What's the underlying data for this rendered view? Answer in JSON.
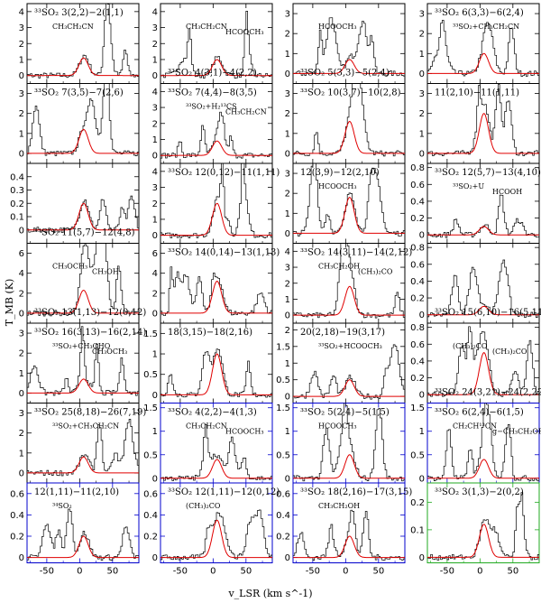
{
  "figure": {
    "ylabel": "T_MB (K)",
    "xlabel": "v_LSR (km s^-1)",
    "xlim": [
      -80,
      90
    ],
    "xticks": [
      -50,
      0,
      50
    ]
  },
  "chart_data": [
    {
      "type": "line",
      "axis_color": "#000000",
      "ylim": [
        -0.5,
        4.5
      ],
      "yticks": [
        0,
        1,
        2,
        3,
        4
      ],
      "peak": 1.1,
      "label": "³³SO₂ 3(2,2)−2(1,1)",
      "label_pos": "top",
      "annotations": [
        "CH₃CH₂CN"
      ]
    },
    {
      "type": "line",
      "axis_color": "#000000",
      "ylim": [
        -0.5,
        4.5
      ],
      "yticks": [
        0,
        1,
        2,
        3,
        4
      ],
      "peak": 1.0,
      "label": "³³SO₂ 4(3,1)−4(2,2)",
      "label_pos": "bottom",
      "annotations": [
        "CH₃CH₂CN",
        "HCOOCH₃"
      ]
    },
    {
      "type": "line",
      "axis_color": "#000000",
      "ylim": [
        -0.5,
        3.5
      ],
      "yticks": [
        0,
        1,
        2,
        3
      ],
      "peak": 0.7,
      "label": "³³SO₂ 5(3,3)−5(2,4)",
      "label_pos": "bottom",
      "annotations": [
        "HCOOCH₃"
      ]
    },
    {
      "type": "line",
      "axis_color": "#000000",
      "ylim": [
        -0.5,
        3.5
      ],
      "yticks": [
        0,
        1,
        2,
        3
      ],
      "peak": 1.0,
      "label": "³³SO₂ 6(3,3)−6(2,4)",
      "label_pos": "top",
      "annotations": [
        "³³SO₂+CH₃CH₂CN"
      ]
    },
    {
      "type": "line",
      "axis_color": "#000000",
      "ylim": [
        -0.5,
        3.5
      ],
      "yticks": [
        0,
        1,
        2,
        3
      ],
      "peak": 1.2,
      "label": "³³SO₂ 7(3,5)−7(2,6)",
      "label_pos": "top",
      "annotations": []
    },
    {
      "type": "line",
      "axis_color": "#000000",
      "ylim": [
        -0.5,
        4.5
      ],
      "yticks": [
        0,
        1,
        2,
        3,
        4
      ],
      "peak": 0.9,
      "label": "³³SO₂ 7(4,4)−8(3,5)",
      "label_pos": "top",
      "annotations": [
        "³³SO₂+H₂¹³CS",
        "CH₃CH₂CN"
      ]
    },
    {
      "type": "line",
      "axis_color": "#000000",
      "ylim": [
        -0.5,
        3.5
      ],
      "yticks": [
        0,
        1,
        2,
        3
      ],
      "peak": 1.6,
      "label": "³³SO₂ 10(3,7)−10(2,8)",
      "label_pos": "top",
      "annotations": []
    },
    {
      "type": "line",
      "axis_color": "#000000",
      "ylim": [
        -0.5,
        3.5
      ],
      "yticks": [
        0,
        1,
        2,
        3
      ],
      "peak": 2.0,
      "label": "11(2,10)−11(1,11)",
      "label_pos": "top",
      "annotations": []
    },
    {
      "type": "line",
      "axis_color": "#000000",
      "ylim": [
        -0.1,
        0.5
      ],
      "yticks": [
        0,
        0.1,
        0.2,
        0.3,
        0.4
      ],
      "peak": 0.2,
      "label": "³³SO₂ 11(5,7)−12(4,8)",
      "label_pos": "bottom",
      "annotations": []
    },
    {
      "type": "line",
      "axis_color": "#000000",
      "ylim": [
        -0.5,
        4.5
      ],
      "yticks": [
        0,
        1,
        2,
        3,
        4
      ],
      "peak": 2.0,
      "label": "³³SO₂ 12(0,12)−11(1,11)",
      "label_pos": "top",
      "annotations": []
    },
    {
      "type": "line",
      "axis_color": "#000000",
      "ylim": [
        -0.5,
        3.5
      ],
      "yticks": [
        0,
        1,
        2,
        3
      ],
      "peak": 1.8,
      "label": "12(3,9)−12(2,10)",
      "label_pos": "top",
      "annotations": [
        "HCOOCH₃"
      ]
    },
    {
      "type": "line",
      "axis_color": "#000000",
      "ylim": [
        -0.1,
        0.85
      ],
      "yticks": [
        0,
        0.2,
        0.4,
        0.6,
        0.8
      ],
      "peak": 0.1,
      "label": "³³SO₂ 12(5,7)−13(4,10)",
      "label_pos": "top",
      "annotations": [
        "³³SO₂+U",
        "HCOOH"
      ]
    },
    {
      "type": "line",
      "axis_color": "#000000",
      "ylim": [
        -1,
        7
      ],
      "yticks": [
        0,
        2,
        4,
        6
      ],
      "peak": 2.3,
      "label": "³³SO₂ 13(1,13)−12(0,12)",
      "label_pos": "bottom",
      "annotations": [
        "CH₃OCH₃",
        "CH₃OH"
      ]
    },
    {
      "type": "line",
      "axis_color": "#000000",
      "ylim": [
        -1,
        7
      ],
      "yticks": [
        0,
        2,
        4,
        6
      ],
      "peak": 3.2,
      "label": "³³SO₂ 14(0,14)−13(1,13)",
      "label_pos": "top",
      "annotations": []
    },
    {
      "type": "line",
      "axis_color": "#000000",
      "ylim": [
        -0.5,
        4.5
      ],
      "yticks": [
        0,
        1,
        2,
        3,
        4
      ],
      "peak": 1.8,
      "label": "³³SO₂ 14(3,11)−14(2,12)",
      "label_pos": "top",
      "annotations": [
        "CH₃CH₂OH",
        "(CH₃)₂CO"
      ]
    },
    {
      "type": "line",
      "axis_color": "#000000",
      "ylim": [
        -0.1,
        0.85
      ],
      "yticks": [
        0,
        0.2,
        0.4,
        0.6,
        0.8
      ],
      "peak": 0.1,
      "label": "³³SO₂ 15(6,10)−16(5,11)",
      "label_pos": "bottom",
      "annotations": []
    },
    {
      "type": "line",
      "axis_color": "#000000",
      "ylim": [
        -0.5,
        3.5
      ],
      "yticks": [
        0,
        1,
        2,
        3
      ],
      "peak": 0.7,
      "label": "³³SO₂ 16(3,13)−16(2,14)",
      "label_pos": "top",
      "annotations": [
        "³³SO₂+CH₃CHO",
        "CH₃OCH₃"
      ]
    },
    {
      "type": "line",
      "axis_color": "#000000",
      "ylim": [
        -0.2,
        1.75
      ],
      "yticks": [
        0,
        0.5,
        1,
        1.5
      ],
      "peak": 1.0,
      "label": "18(3,15)−18(2,16)",
      "label_pos": "top",
      "annotations": []
    },
    {
      "type": "line",
      "axis_color": "#000000",
      "ylim": [
        -0.2,
        2.2
      ],
      "yticks": [
        0,
        0.5,
        1,
        1.5,
        2
      ],
      "peak": 0.5,
      "label": "20(2,18)−19(3,17)",
      "label_pos": "top",
      "annotations": [
        "³³SO₂+HCOOCH₃"
      ]
    },
    {
      "type": "line",
      "axis_color": "#000000",
      "ylim": [
        -0.1,
        0.85
      ],
      "yticks": [
        0,
        0.2,
        0.4,
        0.6,
        0.8
      ],
      "peak": 0.5,
      "label": "³³SO₂ 24(3,21)−24(2,22)",
      "label_pos": "bottom",
      "annotations": [
        "(CH₃)₂CO",
        "(CH₃)₂CO"
      ]
    },
    {
      "type": "line",
      "axis_color": "#000000",
      "ylim": [
        -0.5,
        3.5
      ],
      "yticks": [
        0,
        1,
        2,
        3
      ],
      "peak": 0.8,
      "label": "³³SO₂ 25(8,18)−26(7,19)",
      "label_pos": "top",
      "annotations": [
        "³³SO₂+CH₃CH₂CN"
      ]
    },
    {
      "type": "line",
      "axis_color": "#0000cc",
      "ylim": [
        -0.1,
        1.6
      ],
      "yticks": [
        0,
        0.5,
        1,
        1.5
      ],
      "peak": 0.4,
      "label": "³³SO₂ 4(2,2)−4(1,3)",
      "label_pos": "top",
      "annotations": [
        "CH₃CH₂CN",
        "HCOOCH₃"
      ]
    },
    {
      "type": "line",
      "axis_color": "#0000cc",
      "ylim": [
        -0.1,
        1.6
      ],
      "yticks": [
        0,
        0.5,
        1,
        1.5
      ],
      "peak": 0.5,
      "label": "³³SO₂ 5(2,4)−5(1,5)",
      "label_pos": "top",
      "annotations": [
        "HCOOCH₃"
      ]
    },
    {
      "type": "line",
      "axis_color": "#0000cc",
      "ylim": [
        -0.1,
        1.6
      ],
      "yticks": [
        0,
        0.5,
        1,
        1.5
      ],
      "peak": 0.4,
      "label": "³³SO₂ 6(2,4)−6(1,5)",
      "label_pos": "top",
      "annotations": [
        "CH₂CH¹³CN",
        "g−CH₃CH₂OH"
      ]
    },
    {
      "type": "line",
      "axis_color": "#0000cc",
      "ylim": [
        -0.05,
        0.7
      ],
      "yticks": [
        0,
        0.2,
        0.4,
        0.6
      ],
      "peak": 0.2,
      "label": "12(1,11)−11(2,10)",
      "label_pos": "top",
      "annotations": [
        "³⁴SO₂"
      ]
    },
    {
      "type": "line",
      "axis_color": "#0000cc",
      "ylim": [
        -0.05,
        0.7
      ],
      "yticks": [
        0,
        0.2,
        0.4,
        0.6
      ],
      "peak": 0.35,
      "label": "³³SO₂ 12(1,11)−12(0,12)",
      "label_pos": "top",
      "annotations": [
        "(CH₃)₂CO"
      ]
    },
    {
      "type": "line",
      "axis_color": "#0000cc",
      "ylim": [
        -0.05,
        0.7
      ],
      "yticks": [
        0,
        0.2,
        0.4,
        0.6
      ],
      "peak": 0.2,
      "label": "³³SO₂ 18(2,16)−17(3,15)",
      "label_pos": "top",
      "annotations": [
        "CH₃CH₂OH"
      ]
    },
    {
      "type": "line",
      "axis_color": "#22aa22",
      "ylim": [
        -0.02,
        0.27
      ],
      "yticks": [
        0,
        0.1,
        0.2
      ],
      "peak": 0.12,
      "label": "³³SO₂ 3(1,3)−2(0,2)",
      "label_pos": "top",
      "annotations": []
    }
  ]
}
